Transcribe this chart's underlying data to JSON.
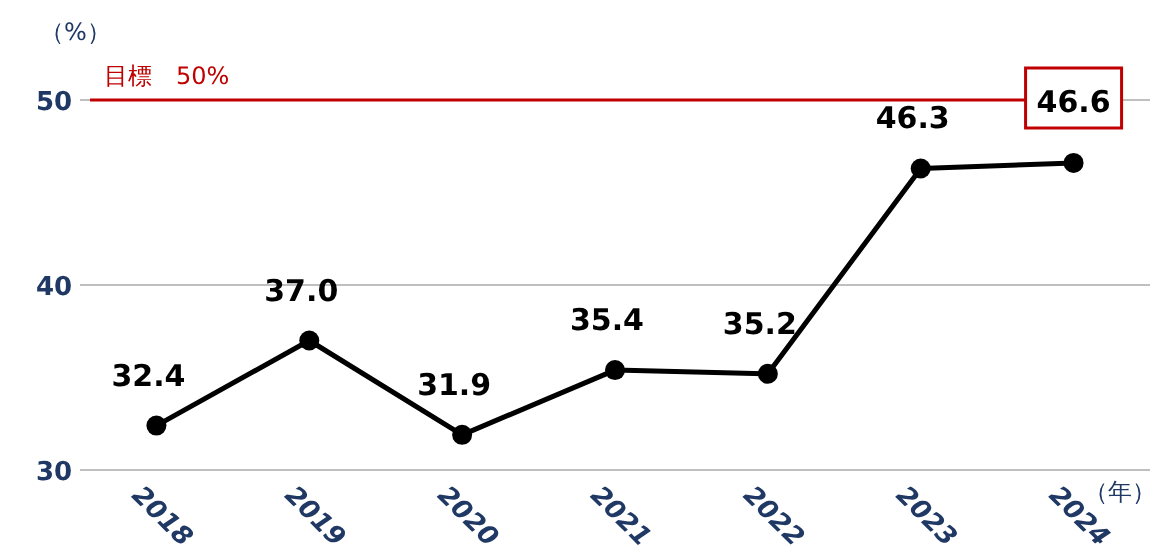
{
  "chart_data": {
    "type": "line",
    "ylabel": "（%）",
    "xlabel": "（年）",
    "categories": [
      "2018",
      "2019",
      "2020",
      "2021",
      "2022",
      "2023",
      "2024"
    ],
    "series": [
      {
        "color": "#000000",
        "values": [
          32.4,
          37.0,
          31.9,
          35.4,
          35.2,
          46.3,
          46.6
        ],
        "value_labels": [
          "32.4",
          "37.0",
          "31.9",
          "35.4",
          "35.2",
          "46.3",
          "46.6"
        ]
      }
    ],
    "ylim": [
      30,
      50
    ],
    "yticks": [
      30,
      40,
      50
    ],
    "grid": "y",
    "marker": "circle",
    "line_style": "solid",
    "ref_lines": [
      {
        "axis": "y",
        "value": 50,
        "label": "目標　50%",
        "color": "#c00000"
      }
    ]
  }
}
